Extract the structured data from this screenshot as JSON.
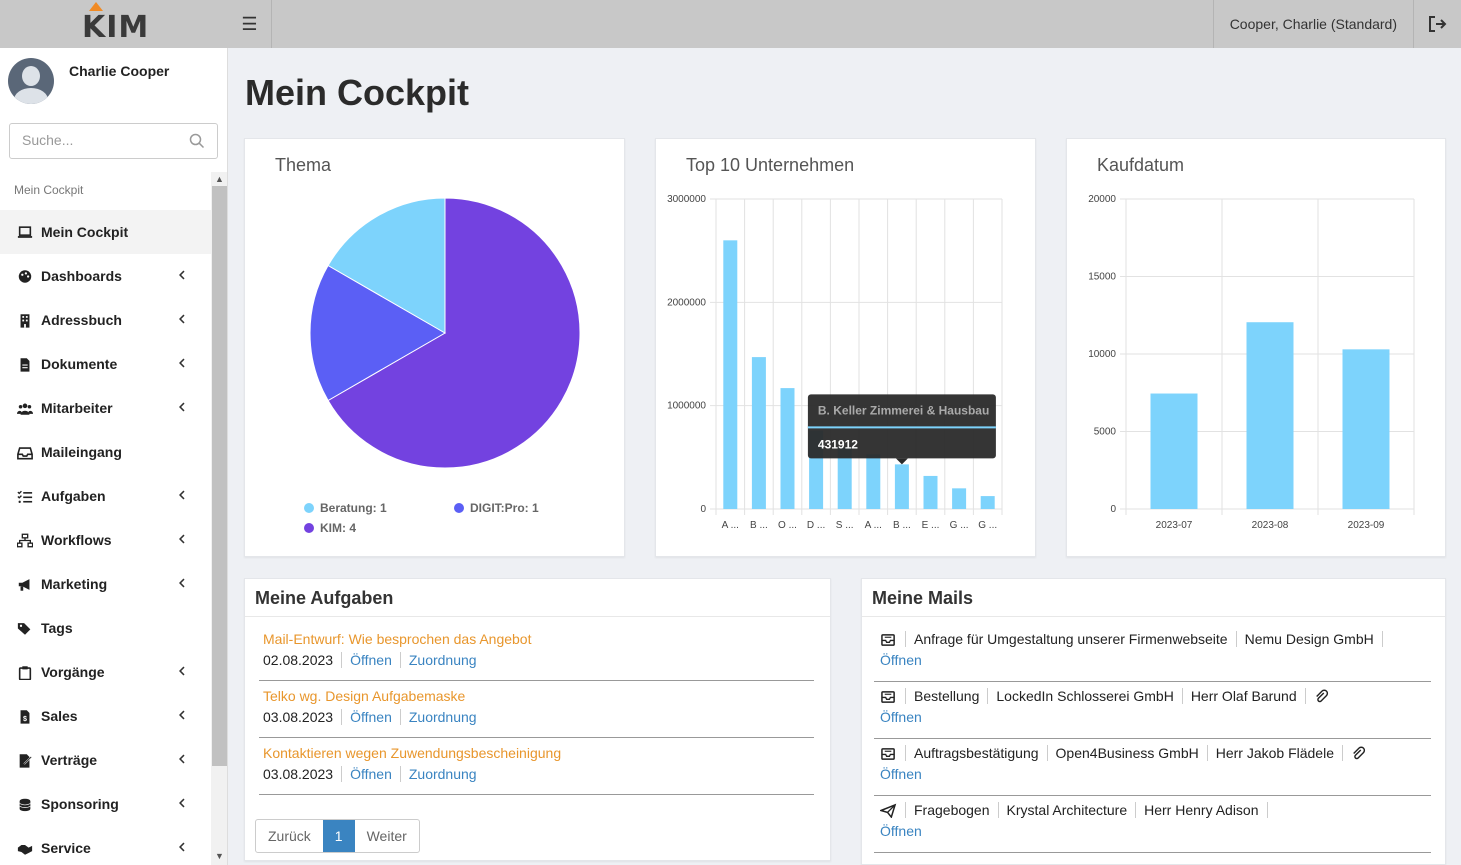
{
  "app": {
    "logo": "KIM"
  },
  "header": {
    "user_label": "Cooper, Charlie (Standard)"
  },
  "sidebar": {
    "profile_name": "Charlie Cooper",
    "search_placeholder": "Suche...",
    "section_label": "Mein Cockpit",
    "items": [
      {
        "label": "Mein Cockpit",
        "icon": "laptop-icon",
        "chevron": false,
        "active": true
      },
      {
        "label": "Dashboards",
        "icon": "palette-icon",
        "chevron": true
      },
      {
        "label": "Adressbuch",
        "icon": "building-icon",
        "chevron": true
      },
      {
        "label": "Dokumente",
        "icon": "file-icon",
        "chevron": true
      },
      {
        "label": "Mitarbeiter",
        "icon": "users-icon",
        "chevron": true
      },
      {
        "label": "Maileingang",
        "icon": "inbox-icon",
        "chevron": false
      },
      {
        "label": "Aufgaben",
        "icon": "tasks-icon",
        "chevron": true
      },
      {
        "label": "Workflows",
        "icon": "sitemap-icon",
        "chevron": true
      },
      {
        "label": "Marketing",
        "icon": "bullhorn-icon",
        "chevron": true
      },
      {
        "label": "Tags",
        "icon": "tags-icon",
        "chevron": false
      },
      {
        "label": "Vorgänge",
        "icon": "clipboard-icon",
        "chevron": true
      },
      {
        "label": "Sales",
        "icon": "invoice-icon",
        "chevron": true
      },
      {
        "label": "Verträge",
        "icon": "contract-icon",
        "chevron": true
      },
      {
        "label": "Sponsoring",
        "icon": "coins-icon",
        "chevron": true
      },
      {
        "label": "Service",
        "icon": "handshake-icon",
        "chevron": true
      }
    ]
  },
  "main": {
    "title": "Mein Cockpit"
  },
  "chart_data": [
    {
      "type": "pie",
      "title": "Thema",
      "slices": [
        {
          "label": "Beratung",
          "value": 1,
          "color": "#7dd3fc"
        },
        {
          "label": "DIGIT:Pro",
          "value": 1,
          "color": "#5b5ff5"
        },
        {
          "label": "KIM",
          "value": 4,
          "color": "#7342e0"
        }
      ],
      "legend": [
        "Beratung: 1",
        "DIGIT:Pro: 1",
        "KIM: 4"
      ]
    },
    {
      "type": "bar",
      "title": "Top 10 Unternehmen",
      "categories": [
        "A ...",
        "B ...",
        "O ...",
        "D ...",
        "S ...",
        "A ...",
        "B ...",
        "E ...",
        "G ...",
        "G ..."
      ],
      "values": [
        2600000,
        1470000,
        1170000,
        760000,
        600000,
        530000,
        431912,
        320000,
        200000,
        125000
      ],
      "ylim": [
        0,
        3000000
      ],
      "yticks": [
        "0",
        "1000000",
        "2000000",
        "3000000"
      ],
      "color": "#7dd3fc",
      "tooltip": {
        "title": "B. Keller Zimmerei & Hausbau",
        "value": "431912",
        "index": 6
      }
    },
    {
      "type": "bar",
      "title": "Kaufdatum",
      "categories": [
        "2023-07",
        "2023-08",
        "2023-09"
      ],
      "values": [
        7450,
        12050,
        10300
      ],
      "ylim": [
        0,
        20000
      ],
      "yticks": [
        "0",
        "5000",
        "10000",
        "15000",
        "20000"
      ],
      "color": "#7dd3fc"
    }
  ],
  "tasks": {
    "title": "Meine Aufgaben",
    "items": [
      {
        "title": "Mail-Entwurf: Wie besprochen das Angebot",
        "date": "02.08.2023",
        "open": "Öffnen",
        "assign": "Zuordnung"
      },
      {
        "title": "Telko wg. Design Aufgabemaske",
        "date": "03.08.2023",
        "open": "Öffnen",
        "assign": "Zuordnung"
      },
      {
        "title": "Kontaktieren wegen Zuwendungsbescheinigung",
        "date": "03.08.2023",
        "open": "Öffnen",
        "assign": "Zuordnung"
      }
    ],
    "pager": {
      "prev": "Zurück",
      "current": "1",
      "next": "Weiter"
    }
  },
  "mails": {
    "title": "Meine Mails",
    "items": [
      {
        "icon": "envelope-icon",
        "subject": "Anfrage für Umgestaltung unserer Firmenwebseite",
        "company": "Nemu Design GmbH",
        "person": "",
        "attachment": false,
        "open": "Öffnen"
      },
      {
        "icon": "envelope-icon",
        "subject": "Bestellung",
        "company": "LockedIn Schlosserei GmbH",
        "person": "Herr Olaf Barund",
        "attachment": true,
        "open": "Öffnen"
      },
      {
        "icon": "envelope-icon",
        "subject": "Auftragsbestätigung",
        "company": "Open4Business GmbH",
        "person": "Herr Jakob Flädele",
        "attachment": true,
        "open": "Öffnen"
      },
      {
        "icon": "paper-plane-icon",
        "subject": "Fragebogen",
        "company": "Krystal Architecture",
        "person": "Herr Henry Adison",
        "attachment": false,
        "open": "Öffnen"
      }
    ]
  }
}
